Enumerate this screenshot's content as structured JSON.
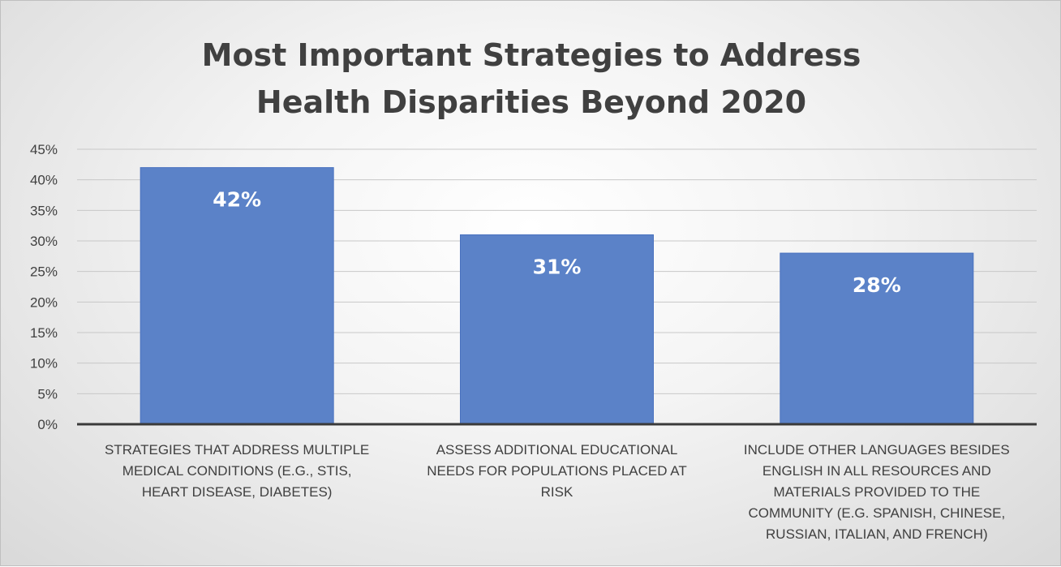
{
  "chart_data": {
    "type": "bar",
    "title": [
      "Most Important Strategies to Address",
      "Health Disparities Beyond 2020"
    ],
    "xlabel": "",
    "ylabel": "",
    "ylim": [
      0,
      45
    ],
    "y_tick_step": 5,
    "y_tick_format": "percent",
    "grid": true,
    "legend": "none",
    "bar_color": "#5b82c8",
    "bar_edge_color": "#4a72bf",
    "categories": [
      [
        "STRATEGIES THAT ADDRESS MULTIPLE",
        "MEDICAL CONDITIONS (E.G., STIS,",
        "HEART DISEASE, DIABETES)"
      ],
      [
        "ASSESS ADDITIONAL EDUCATIONAL",
        "NEEDS FOR POPULATIONS PLACED AT",
        "RISK"
      ],
      [
        "INCLUDE OTHER LANGUAGES BESIDES",
        "ENGLISH IN ALL RESOURCES AND",
        "MATERIALS PROVIDED TO THE",
        "COMMUNITY (E.G. SPANISH, CHINESE,",
        "RUSSIAN, ITALIAN, AND FRENCH)"
      ]
    ],
    "values": [
      42,
      31,
      28
    ],
    "data_labels": [
      "42%",
      "31%",
      "28%"
    ]
  }
}
